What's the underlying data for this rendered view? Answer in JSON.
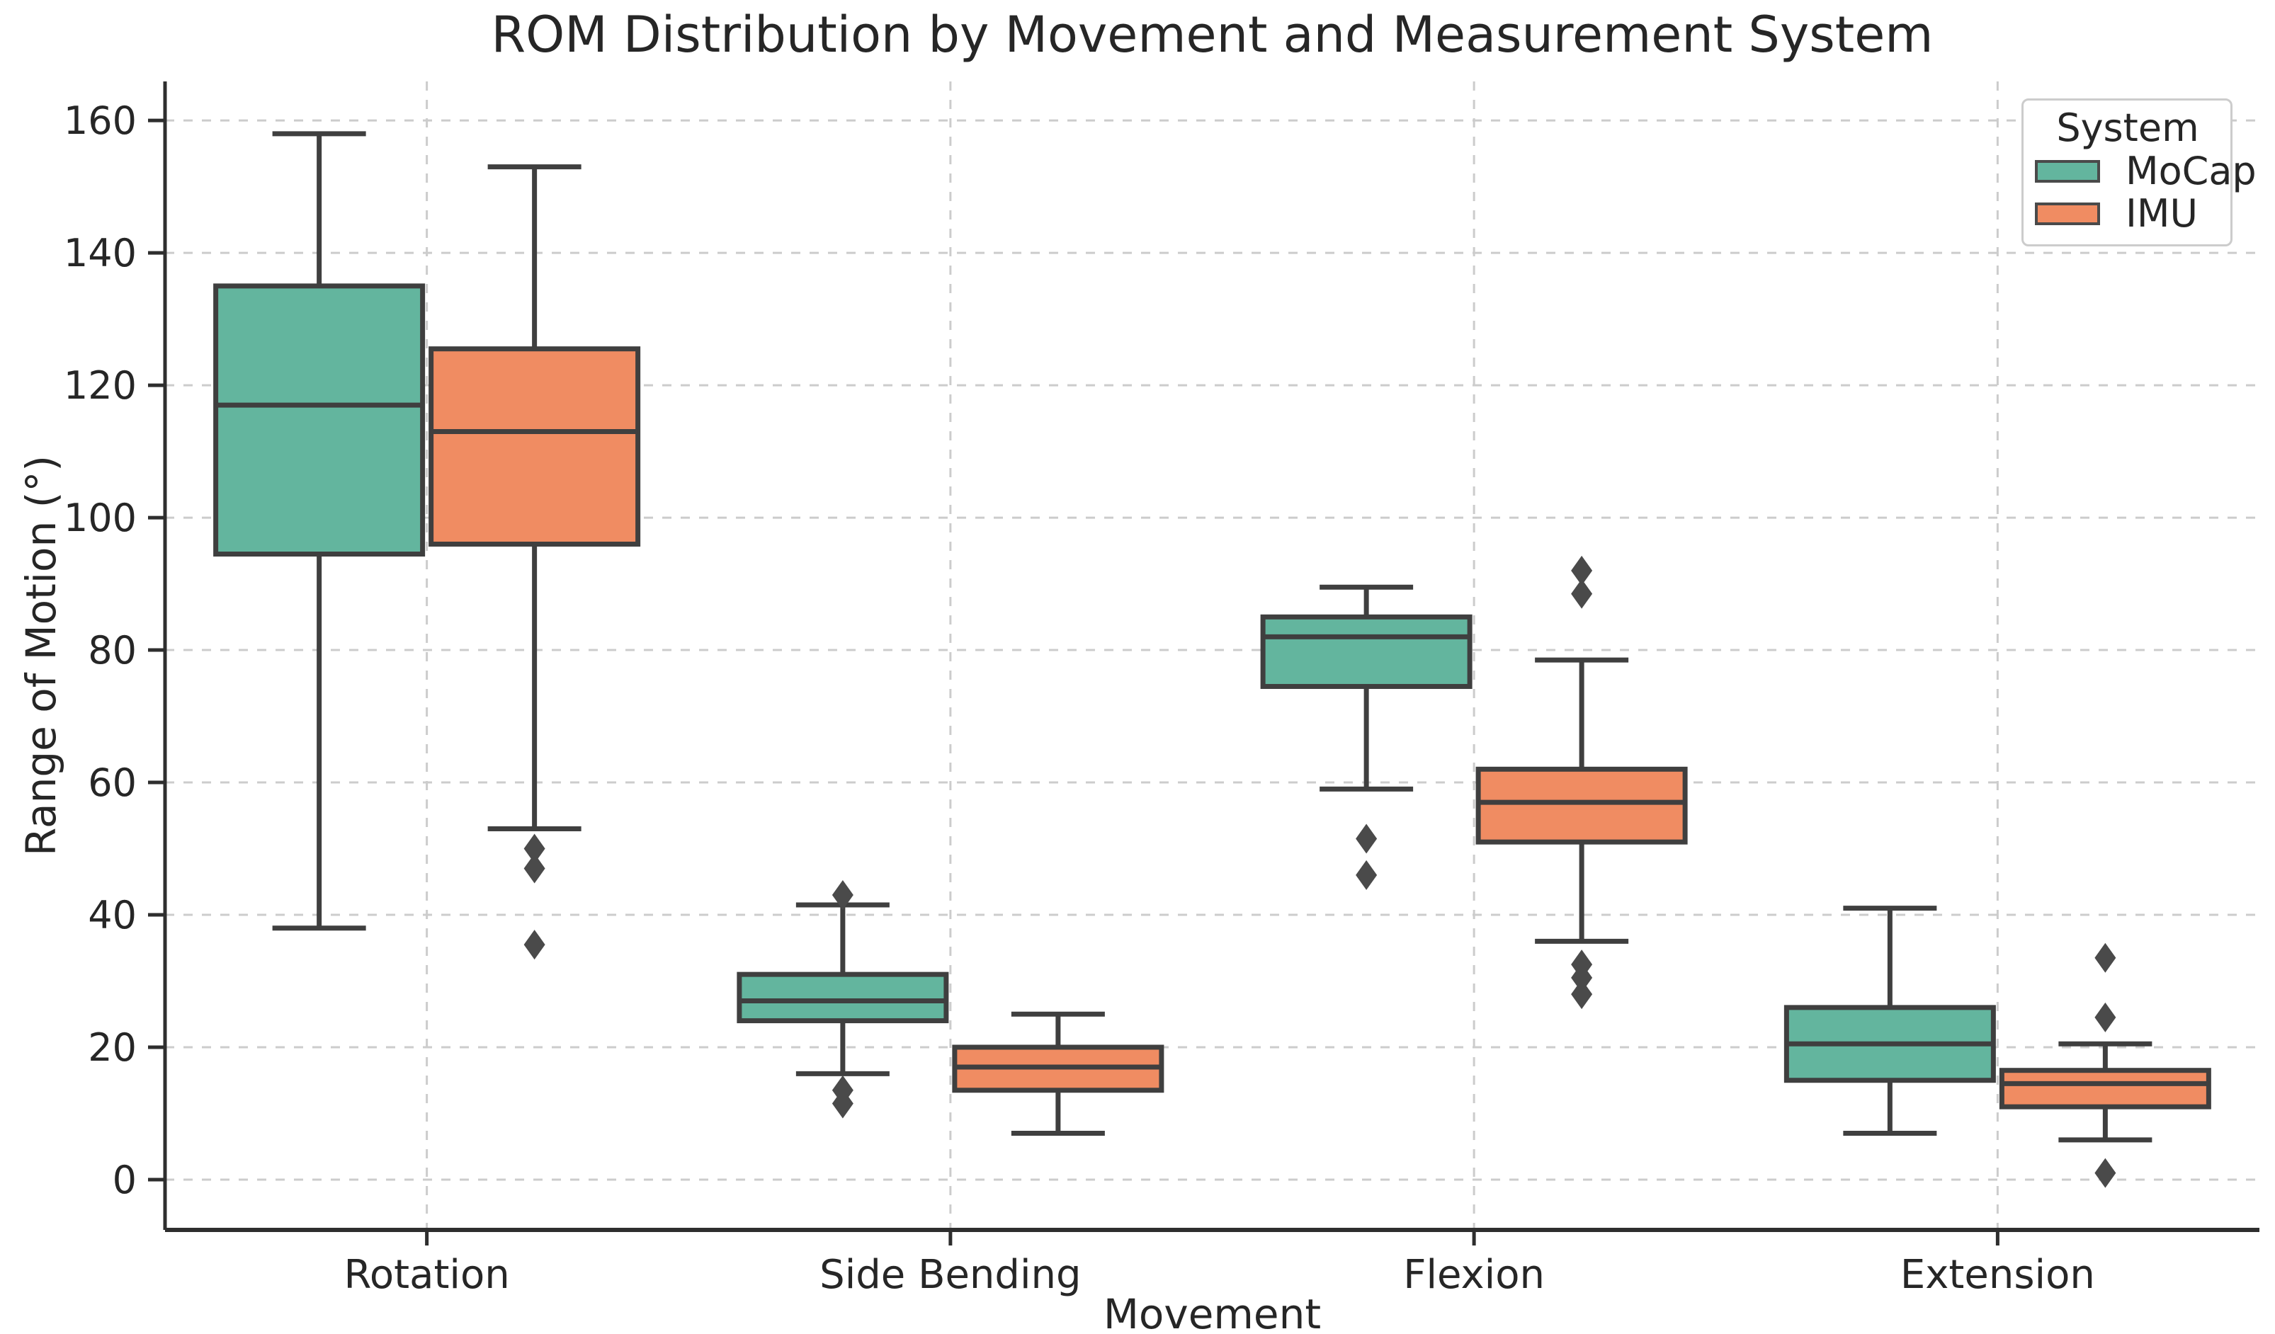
{
  "chart_data": {
    "type": "boxplot",
    "title": "ROM Distribution by Movement and Measurement System",
    "xlabel": "Movement",
    "ylabel": "Range of Motion (°)",
    "categories": [
      "Rotation",
      "Side Bending",
      "Flexion",
      "Extension"
    ],
    "yticks": [
      0,
      20,
      40,
      60,
      80,
      100,
      120,
      140,
      160
    ],
    "ylim": [
      -7.6,
      165.9
    ],
    "grid": "dashed horizontal and vertical gridlines",
    "legend": {
      "title": "System",
      "position": "upper right"
    },
    "edge_color": "#3f3f3f",
    "grid_color": "#cccccc",
    "series": [
      {
        "name": "MoCap",
        "color": "#63b59e",
        "boxes": [
          {
            "category": "Rotation",
            "whisker_low": 38,
            "q1": 94.5,
            "median": 117,
            "q3": 135,
            "whisker_high": 158,
            "outliers": []
          },
          {
            "category": "Side Bending",
            "whisker_low": 16,
            "q1": 24,
            "median": 27,
            "q3": 31,
            "whisker_high": 41.5,
            "outliers": [
              43,
              13.5,
              11.5
            ]
          },
          {
            "category": "Flexion",
            "whisker_low": 59,
            "q1": 74.5,
            "median": 82,
            "q3": 85,
            "whisker_high": 89.5,
            "outliers": [
              51.5,
              46
            ]
          },
          {
            "category": "Extension",
            "whisker_low": 7,
            "q1": 15,
            "median": 20.5,
            "q3": 26,
            "whisker_high": 41,
            "outliers": []
          }
        ]
      },
      {
        "name": "IMU",
        "color": "#f08c62",
        "boxes": [
          {
            "category": "Rotation",
            "whisker_low": 53,
            "q1": 96,
            "median": 113,
            "q3": 125.5,
            "whisker_high": 153,
            "outliers": [
              50,
              47,
              35.5
            ]
          },
          {
            "category": "Side Bending",
            "whisker_low": 7,
            "q1": 13.5,
            "median": 17,
            "q3": 20,
            "whisker_high": 25,
            "outliers": []
          },
          {
            "category": "Flexion",
            "whisker_low": 36,
            "q1": 51,
            "median": 57,
            "q3": 62,
            "whisker_high": 78.5,
            "outliers": [
              92,
              88.5,
              32.5,
              30.5,
              28
            ]
          },
          {
            "category": "Extension",
            "whisker_low": 6,
            "q1": 11,
            "median": 14.5,
            "q3": 16.5,
            "whisker_high": 20.5,
            "outliers": [
              33.5,
              24.5,
              1
            ]
          }
        ]
      }
    ]
  }
}
